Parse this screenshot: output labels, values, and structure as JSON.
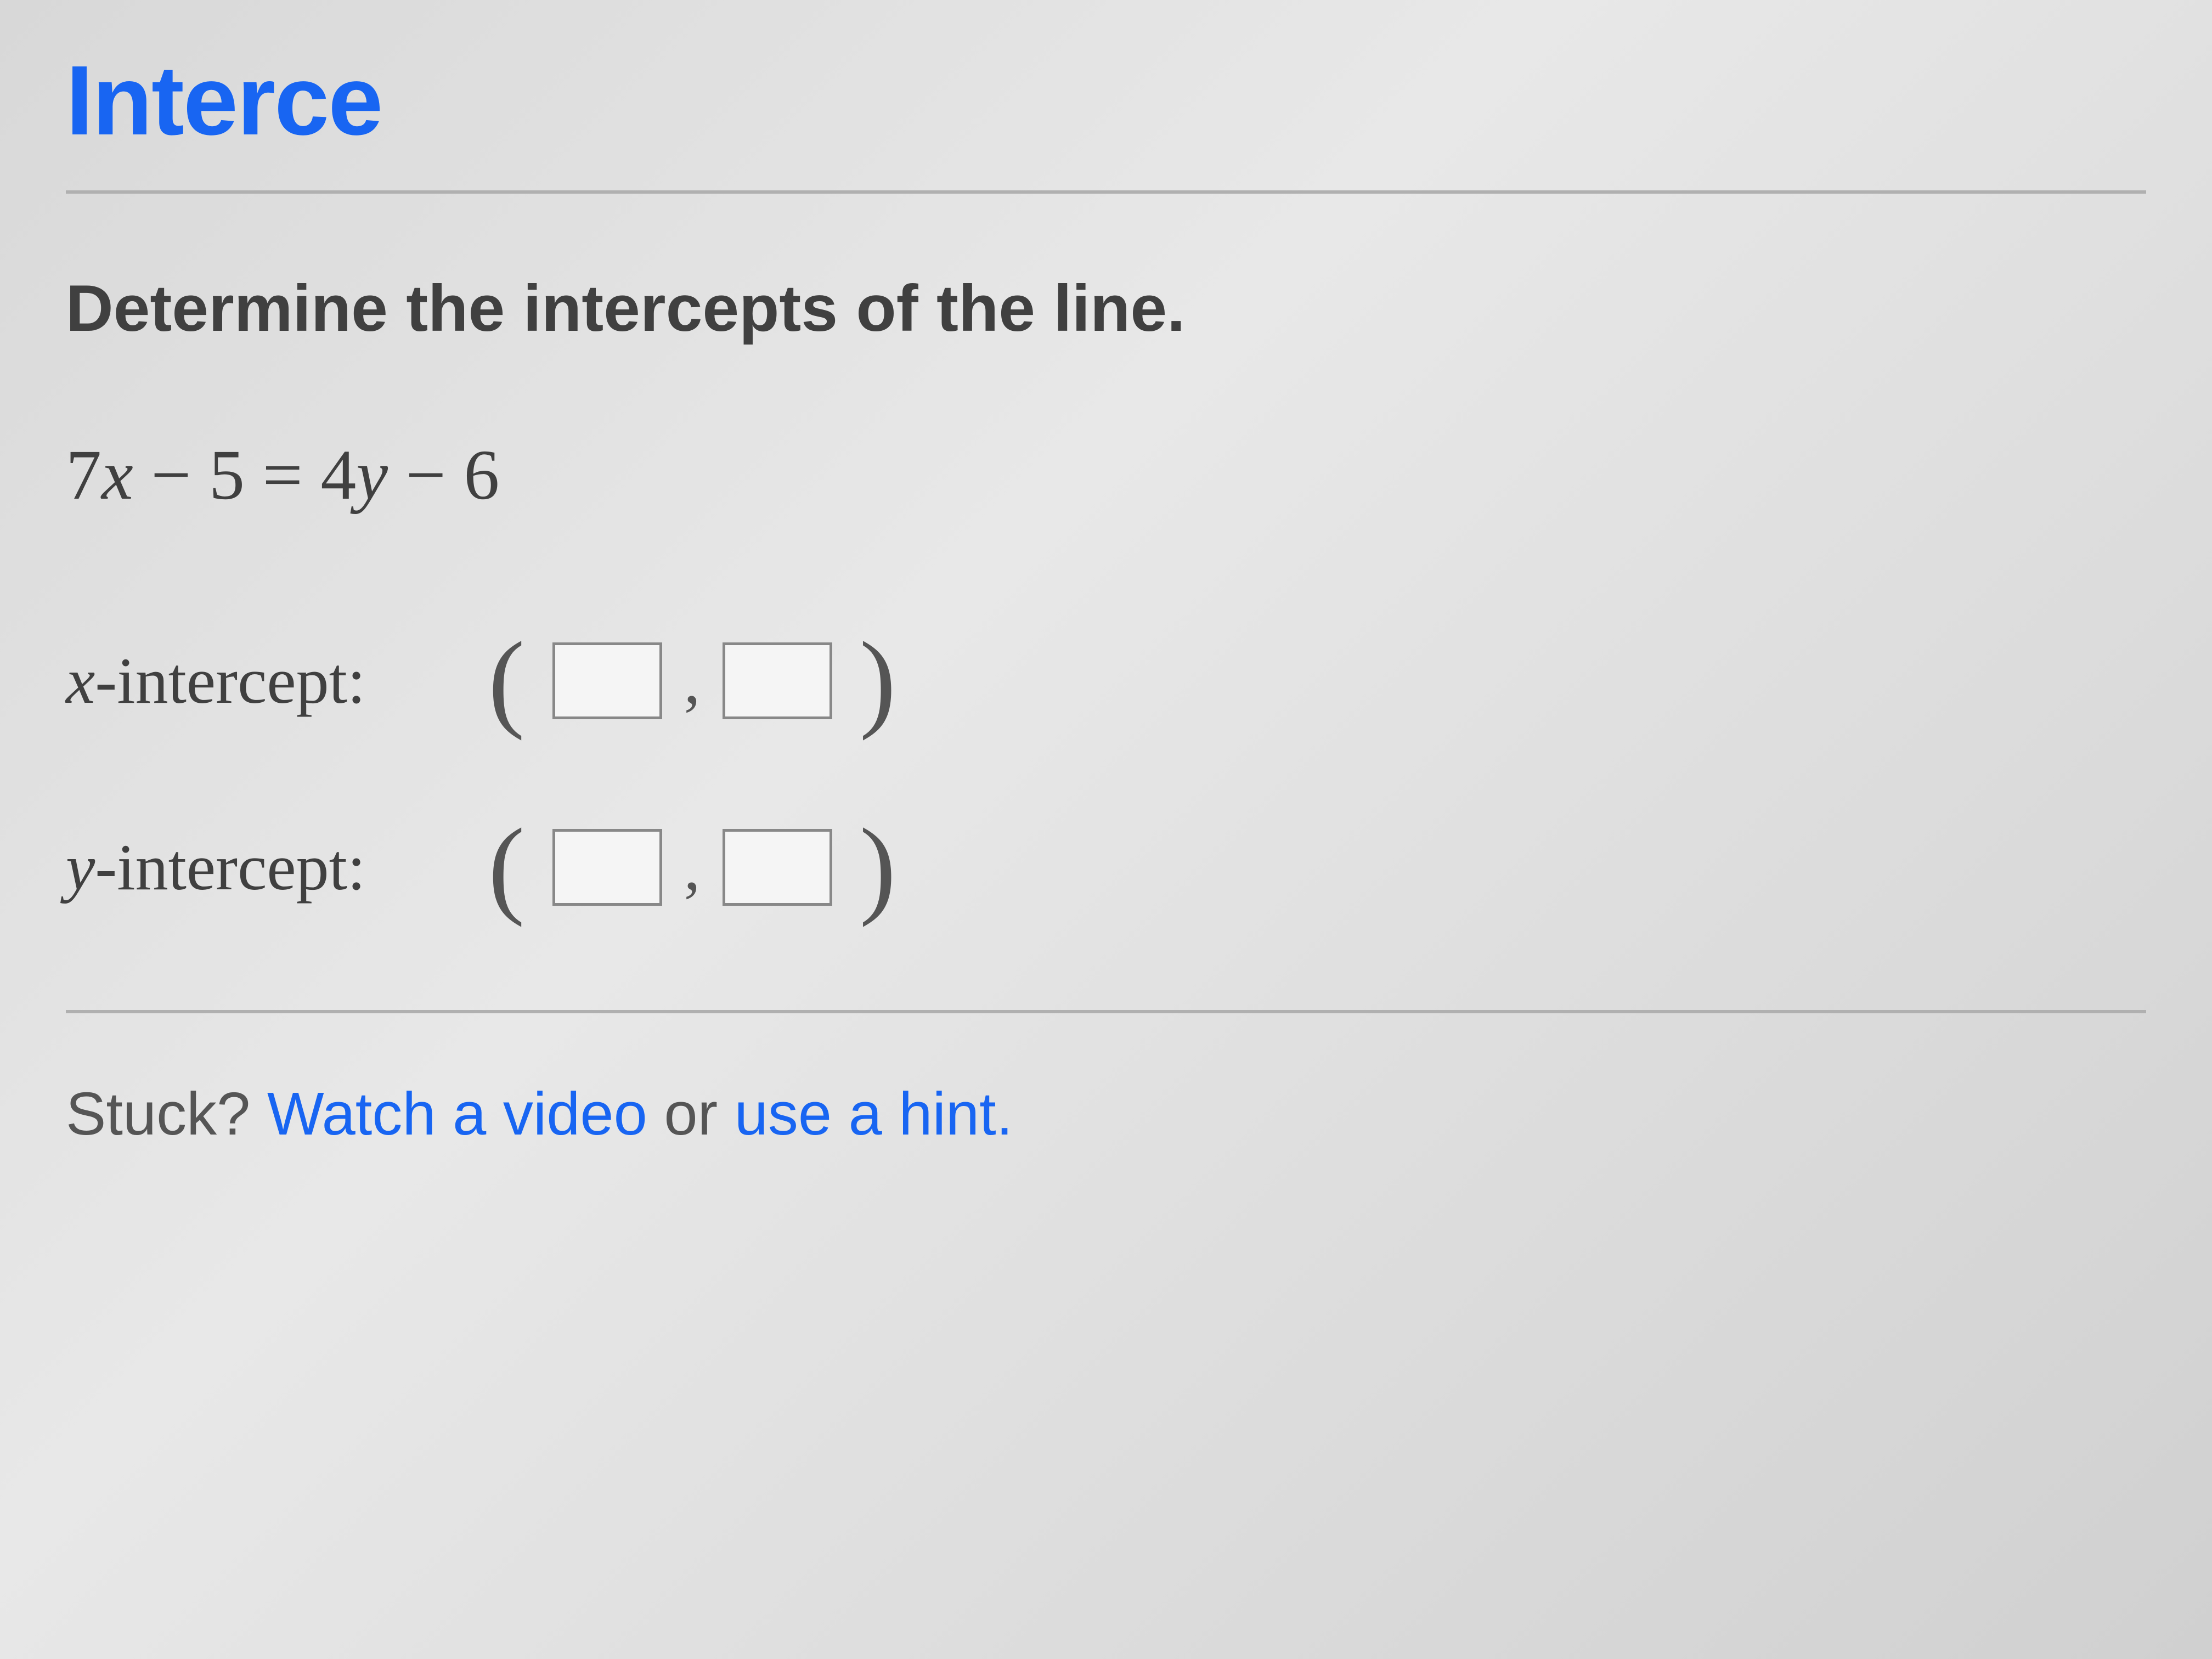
{
  "title": "Interce",
  "prompt": "Determine the intercepts of the line.",
  "equation": {
    "lhs_coef": "7",
    "lhs_var": "x",
    "lhs_minus": " − 5 = ",
    "rhs_coef": "4",
    "rhs_var": "y",
    "rhs_const": " − 6"
  },
  "x_intercept": {
    "var_label": "x",
    "label_rest": "-intercept:",
    "val1": "",
    "val2": ""
  },
  "y_intercept": {
    "var_label": "y",
    "label_rest": "-intercept:",
    "val1": "",
    "val2": ""
  },
  "help": {
    "stuck": "Stuck? ",
    "watch_link": "Watch a video",
    "or_text": " or ",
    "hint_link": "use a hint."
  },
  "colors": {
    "link_blue": "#1865f2",
    "text_gray": "#404040",
    "divider": "#b0b0b0",
    "input_border": "#888"
  }
}
